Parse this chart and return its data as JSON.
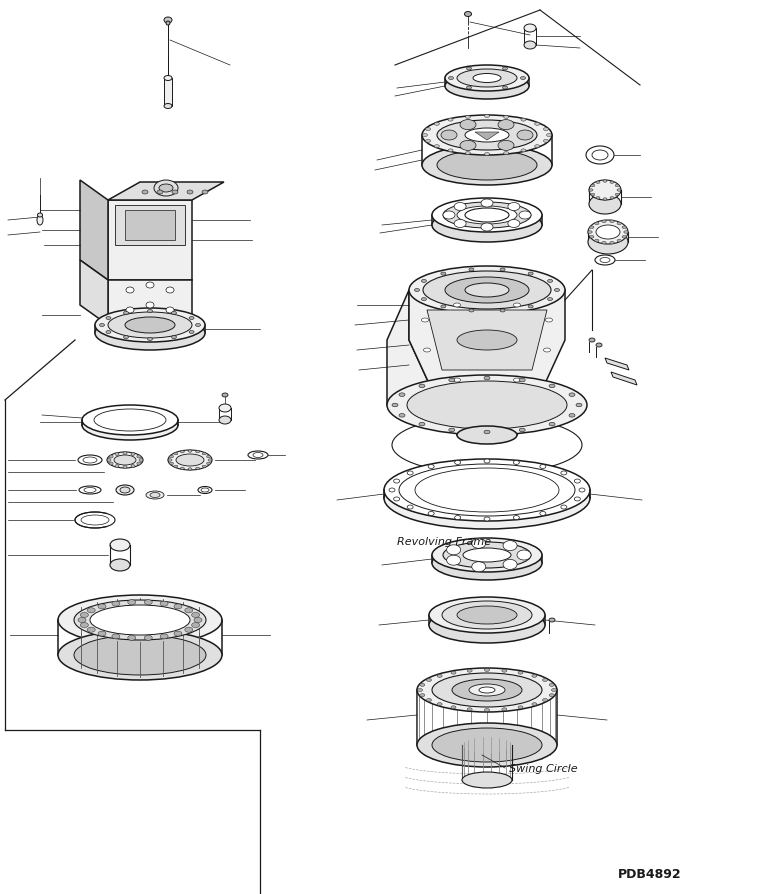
{
  "bg_color": "#ffffff",
  "lc": "#1a1a1a",
  "lw": 0.8,
  "lw_thick": 1.1,
  "label_revolving": "Revolving Frame",
  "label_swing": "Swing Circle",
  "label_code": "PDB4892",
  "figsize": [
    7.65,
    8.94
  ],
  "dpi": 100,
  "fill_white": "#ffffff",
  "fill_light": "#f0f0f0",
  "fill_med": "#e0e0e0",
  "fill_dark": "#c8c8c8",
  "fill_darker": "#b0b0b0"
}
